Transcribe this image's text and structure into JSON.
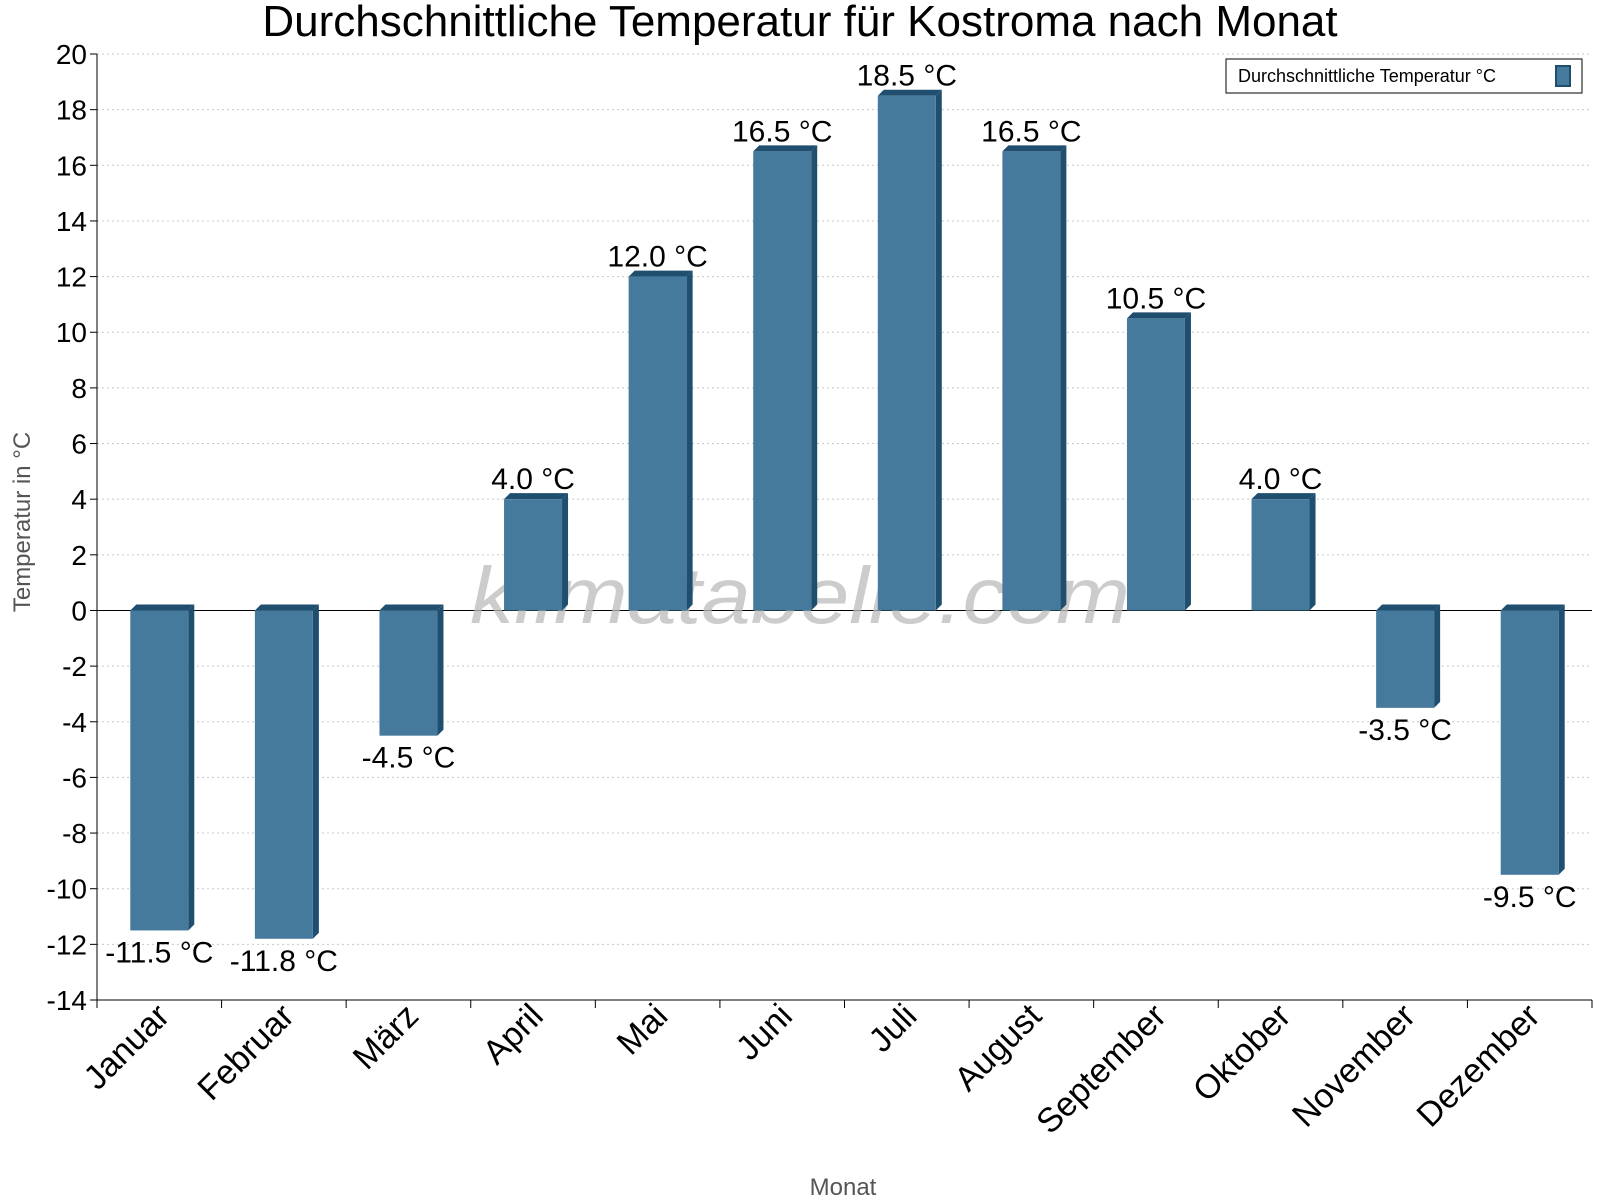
{
  "chart_data": {
    "type": "bar",
    "title": "Durchschnittliche Temperatur für Kostroma nach Monat",
    "xlabel": "Monat",
    "ylabel": "Temperatur in °C",
    "categories": [
      "Januar",
      "Februar",
      "März",
      "April",
      "Mai",
      "Juni",
      "Juli",
      "August",
      "September",
      "Oktober",
      "November",
      "Dezember"
    ],
    "series": [
      {
        "name": "Durchschnittliche Temperatur °C",
        "values": [
          -11.5,
          -11.8,
          -4.5,
          4.0,
          12.0,
          16.5,
          18.5,
          16.5,
          10.5,
          4.0,
          -3.5,
          -9.5
        ],
        "labels": [
          "-11.5 °C",
          "-11.8 °C",
          "-4.5 °C",
          "4.0 °C",
          "12.0 °C",
          "16.5 °C",
          "18.5 °C",
          "16.5 °C",
          "10.5 °C",
          "4.0 °C",
          "-3.5 °C",
          "-9.5 °C"
        ],
        "color": "#467a9d",
        "edge_color": "#1f4e6e"
      }
    ],
    "ylim": [
      -14,
      20
    ],
    "yticks": [
      "20",
      "18",
      "16",
      "14",
      "12",
      "10",
      "8",
      "6",
      "4",
      "2",
      "0",
      "-2",
      "-4",
      "-6",
      "-8",
      "-10",
      "-12",
      "-14"
    ],
    "grid": true,
    "legend_position": "top-right",
    "watermark": "klimatabelle.com"
  }
}
